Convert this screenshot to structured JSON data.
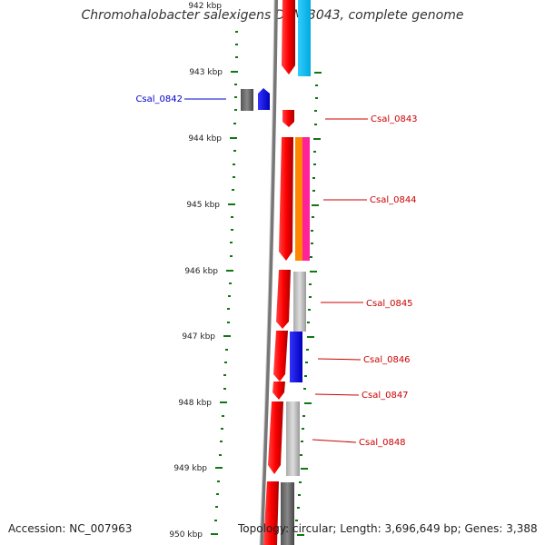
{
  "header": {
    "title": "Chromohalobacter salexigens DSM 3043, complete genome"
  },
  "footer": {
    "accession": "Accession: NC_007963",
    "topology": "Topology: circular; Length: 3,696,649 bp; Genes: 3,388"
  },
  "map": {
    "ticks": [
      "942 kbp",
      "943 kbp",
      "944 kbp",
      "945 kbp",
      "946 kbp",
      "947 kbp",
      "948 kbp",
      "949 kbp",
      "950 kbp"
    ],
    "gene_labels": [
      {
        "name": "Csal_0842",
        "strand": "reverse",
        "color": "#0000cc"
      },
      {
        "name": "Csal_0843",
        "strand": "forward",
        "color": "#cc0000"
      },
      {
        "name": "Csal_0844",
        "strand": "forward",
        "color": "#cc0000"
      },
      {
        "name": "Csal_0845",
        "strand": "forward",
        "color": "#cc0000"
      },
      {
        "name": "Csal_0846",
        "strand": "forward",
        "color": "#cc0000"
      },
      {
        "name": "Csal_0847",
        "strand": "forward",
        "color": "#cc0000"
      },
      {
        "name": "Csal_0848",
        "strand": "forward",
        "color": "#cc0000"
      }
    ]
  },
  "colors": {
    "forward_strand": "#ff0000",
    "reverse_strand": "#0000ff",
    "backbone": "#888888",
    "ticks": "#117711"
  }
}
